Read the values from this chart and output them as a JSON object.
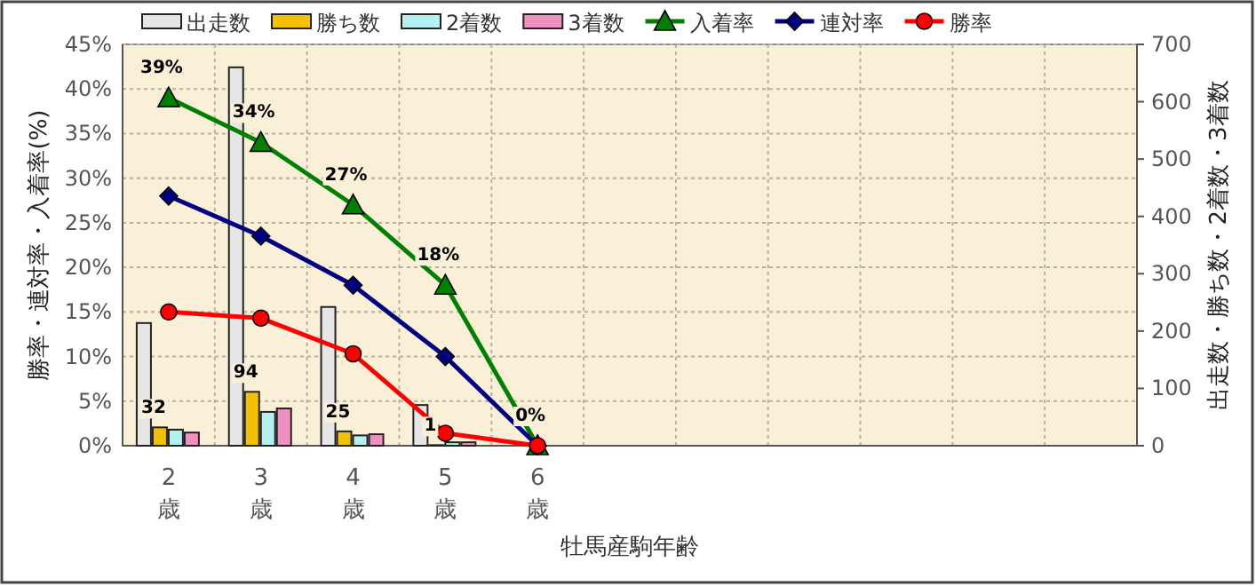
{
  "chart_data": {
    "type": "bar",
    "xlabel": "牡馬産駒年齢",
    "ylabel": "勝率・連対率・入着率(%)",
    "y2label": "出走数・勝ち数・2着数・3着数",
    "categories": [
      "2\n歳",
      "3\n歳",
      "4\n歳",
      "5\n歳",
      "6\n歳",
      null,
      null,
      null,
      null,
      null,
      null
    ],
    "ylim": [
      0,
      45
    ],
    "yticks": [
      {
        "value": 0,
        "label": "0%"
      },
      {
        "value": 5,
        "label": "5%"
      },
      {
        "value": 10,
        "label": "10%"
      },
      {
        "value": 15,
        "label": "15%"
      },
      {
        "value": 20,
        "label": "20%"
      },
      {
        "value": 25,
        "label": "25%"
      },
      {
        "value": 30,
        "label": "30%"
      },
      {
        "value": 35,
        "label": "35%"
      },
      {
        "value": 40,
        "label": "40%"
      },
      {
        "value": 45,
        "label": "45%"
      }
    ],
    "y2lim": [
      0,
      700
    ],
    "y2ticks": [
      0,
      100,
      200,
      300,
      400,
      500,
      600,
      700
    ],
    "grid": true,
    "legend": "top",
    "series": [
      {
        "name": "出走数",
        "axis": "y2",
        "color": "#e6e6e6",
        "values": [
          214,
          660,
          242,
          71,
          null,
          null,
          null,
          null,
          null,
          null,
          null
        ]
      },
      {
        "name": "勝ち数",
        "axis": "y2",
        "color": "#f2c200",
        "values": [
          32,
          94,
          25,
          1,
          0,
          null,
          null,
          null,
          null,
          null,
          null
        ],
        "value_labels": [
          "32",
          "94",
          "25",
          "1",
          null,
          null,
          null,
          null,
          null,
          null,
          null
        ]
      },
      {
        "name": "2着数",
        "axis": "y2",
        "color": "#b4f0f0",
        "values": [
          28,
          59,
          18,
          6,
          0,
          null,
          null,
          null,
          null,
          null,
          null
        ]
      },
      {
        "name": "3着数",
        "axis": "y2",
        "color": "#f090c0",
        "values": [
          23,
          65,
          20,
          6,
          0,
          null,
          null,
          null,
          null,
          null,
          null
        ]
      },
      {
        "name": "入着率",
        "type": "line",
        "marker": "triangle",
        "color": "#008000",
        "values": [
          39,
          34,
          27,
          18,
          0,
          null,
          null,
          null,
          null,
          null,
          null
        ],
        "value_labels": [
          "39%",
          "34%",
          "27%",
          "18%",
          "0%",
          null,
          null,
          null,
          null,
          null,
          null
        ]
      },
      {
        "name": "連対率",
        "type": "line",
        "marker": "diamond",
        "color": "#000080",
        "values": [
          28,
          23.5,
          18,
          10,
          0,
          null,
          null,
          null,
          null,
          null,
          null
        ]
      },
      {
        "name": "勝率",
        "type": "line",
        "marker": "circle",
        "color": "#ff0000",
        "values": [
          15,
          14.3,
          10.3,
          1.4,
          0,
          null,
          null,
          null,
          null,
          null,
          null
        ]
      }
    ]
  }
}
